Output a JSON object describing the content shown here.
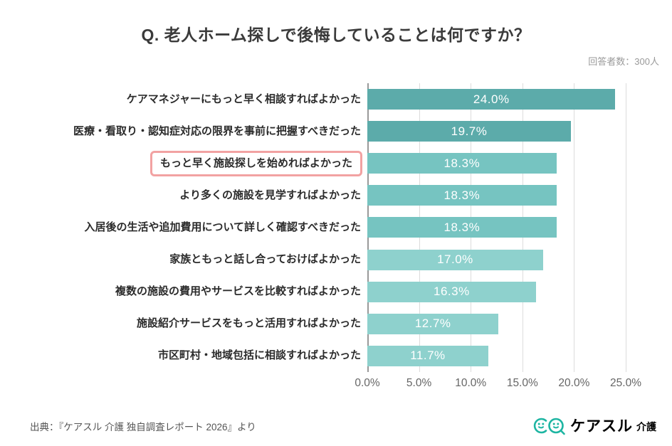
{
  "title": "Q. 老人ホーム探しで後悔していることは何ですか？",
  "respondents_label": "回答者数：300人",
  "source": "出典：『ケアスル 介護 独自調査レポート 2026』より",
  "logo": {
    "brand": "ケアスル",
    "suffix": "介護",
    "color": "#1db5a2"
  },
  "colors": {
    "title_text": "#3b3b3b",
    "label_text": "#2b2b2b",
    "tick_text": "#666666",
    "bar_value_text": "#ffffff",
    "bar_dark": "#5cabaa",
    "bar_mid": "#76c4c1",
    "bar_light": "#8ed1cd",
    "highlight_border": "#f2a2a2",
    "axis_line": "#999999",
    "gridline": "#dcdcdc"
  },
  "chart_data": {
    "type": "bar",
    "orientation": "horizontal",
    "title": "Q. 老人ホーム探しで後悔していることは何ですか？",
    "respondents": 300,
    "categories": [
      "ケアマネジャーにもっと早く相談すればよかった",
      "医療・看取り・認知症対応の限界を事前に把握すべきだった",
      "もっと早く施設探しを始めればよかった",
      "より多くの施設を見学すればよかった",
      "入居後の生活や追加費用について詳しく確認すべきだった",
      "家族ともっと話し合っておけばよかった",
      "複数の施設の費用やサービスを比較すればよかった",
      "施設紹介サービスをもっと活用すればよかった",
      "市区町村・地域包括に相談すればよかった"
    ],
    "values": [
      24.0,
      19.7,
      18.3,
      18.3,
      18.3,
      17.0,
      16.3,
      12.7,
      11.7
    ],
    "display_values": [
      "24.0%",
      "19.7%",
      "18.3%",
      "18.3%",
      "18.3%",
      "17.0%",
      "16.3%",
      "12.7%",
      "11.7%"
    ],
    "bar_tiers": [
      "dark",
      "dark",
      "mid",
      "mid",
      "mid",
      "light",
      "light",
      "light",
      "light"
    ],
    "highlighted_index": 2,
    "xlim": [
      0,
      25
    ],
    "xticks": [
      "0.0%",
      "5.0%",
      "10.0%",
      "15.0%",
      "20.0%",
      "25.0%"
    ],
    "xlabel": "",
    "ylabel": "",
    "grid": "vertical",
    "legend": "none"
  }
}
